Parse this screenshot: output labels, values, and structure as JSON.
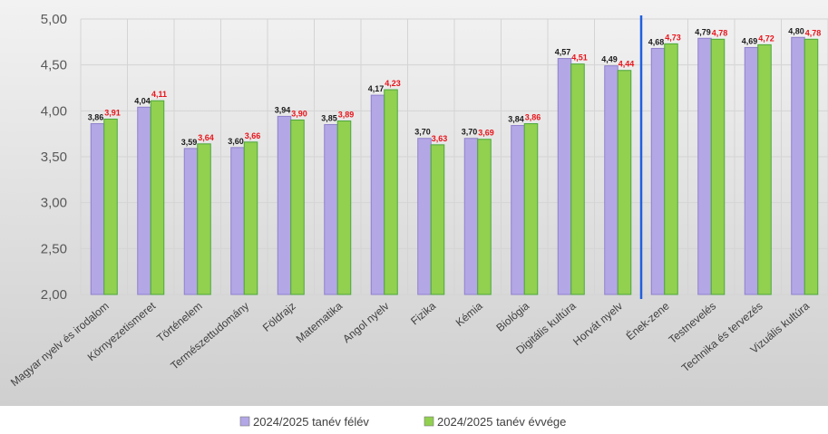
{
  "chart_data": {
    "type": "bar",
    "categories": [
      "Magyar nyelv és irodalom",
      "Környezetismeret",
      "Történelem",
      "Természettudomány",
      "Földrajz",
      "Matematika",
      "Angol nyelv",
      "Fizika",
      "Kémia",
      "Biológia",
      "Digitális kultúra",
      "Horvát nyelv",
      "Ének-zene",
      "Testnevelés",
      "Technika és tervezés",
      "Vizuális kultúra"
    ],
    "series": [
      {
        "name": "2024/2025 tanév félév",
        "color": "#b4a7e6",
        "values": [
          3.86,
          4.04,
          3.59,
          3.6,
          3.94,
          3.85,
          4.17,
          3.7,
          3.7,
          3.84,
          4.57,
          4.49,
          4.68,
          4.79,
          4.69,
          4.8
        ],
        "labels": [
          "3,86",
          "4,04",
          "3,59",
          "3,60",
          "3,94",
          "3,85",
          "4,17",
          "3,70",
          "3,70",
          "3,84",
          "4,57",
          "4,49",
          "4,68",
          "4,79",
          "4,69",
          "4,80"
        ]
      },
      {
        "name": "2024/2025 tanév évvége",
        "color": "#92d050",
        "values": [
          3.91,
          4.11,
          3.64,
          3.66,
          3.9,
          3.89,
          4.23,
          3.63,
          3.69,
          3.86,
          4.51,
          4.44,
          4.73,
          4.78,
          4.72,
          4.78
        ],
        "labels": [
          "3,91",
          "4,11",
          "3,64",
          "3,66",
          "3,90",
          "3,89",
          "4,23",
          "3,63",
          "3,69",
          "3,86",
          "4,51",
          "4,44",
          "4,73",
          "4,78",
          "4,72",
          "4,78"
        ]
      }
    ],
    "ylim": [
      2.0,
      5.0
    ],
    "yticks": [
      "2,00",
      "2,50",
      "3,00",
      "3,50",
      "4,00",
      "4,50",
      "5,00"
    ],
    "separator_after_index": 11,
    "separator_color": "#1f5fe0",
    "grid": true,
    "legend_position": "bottom-center"
  }
}
